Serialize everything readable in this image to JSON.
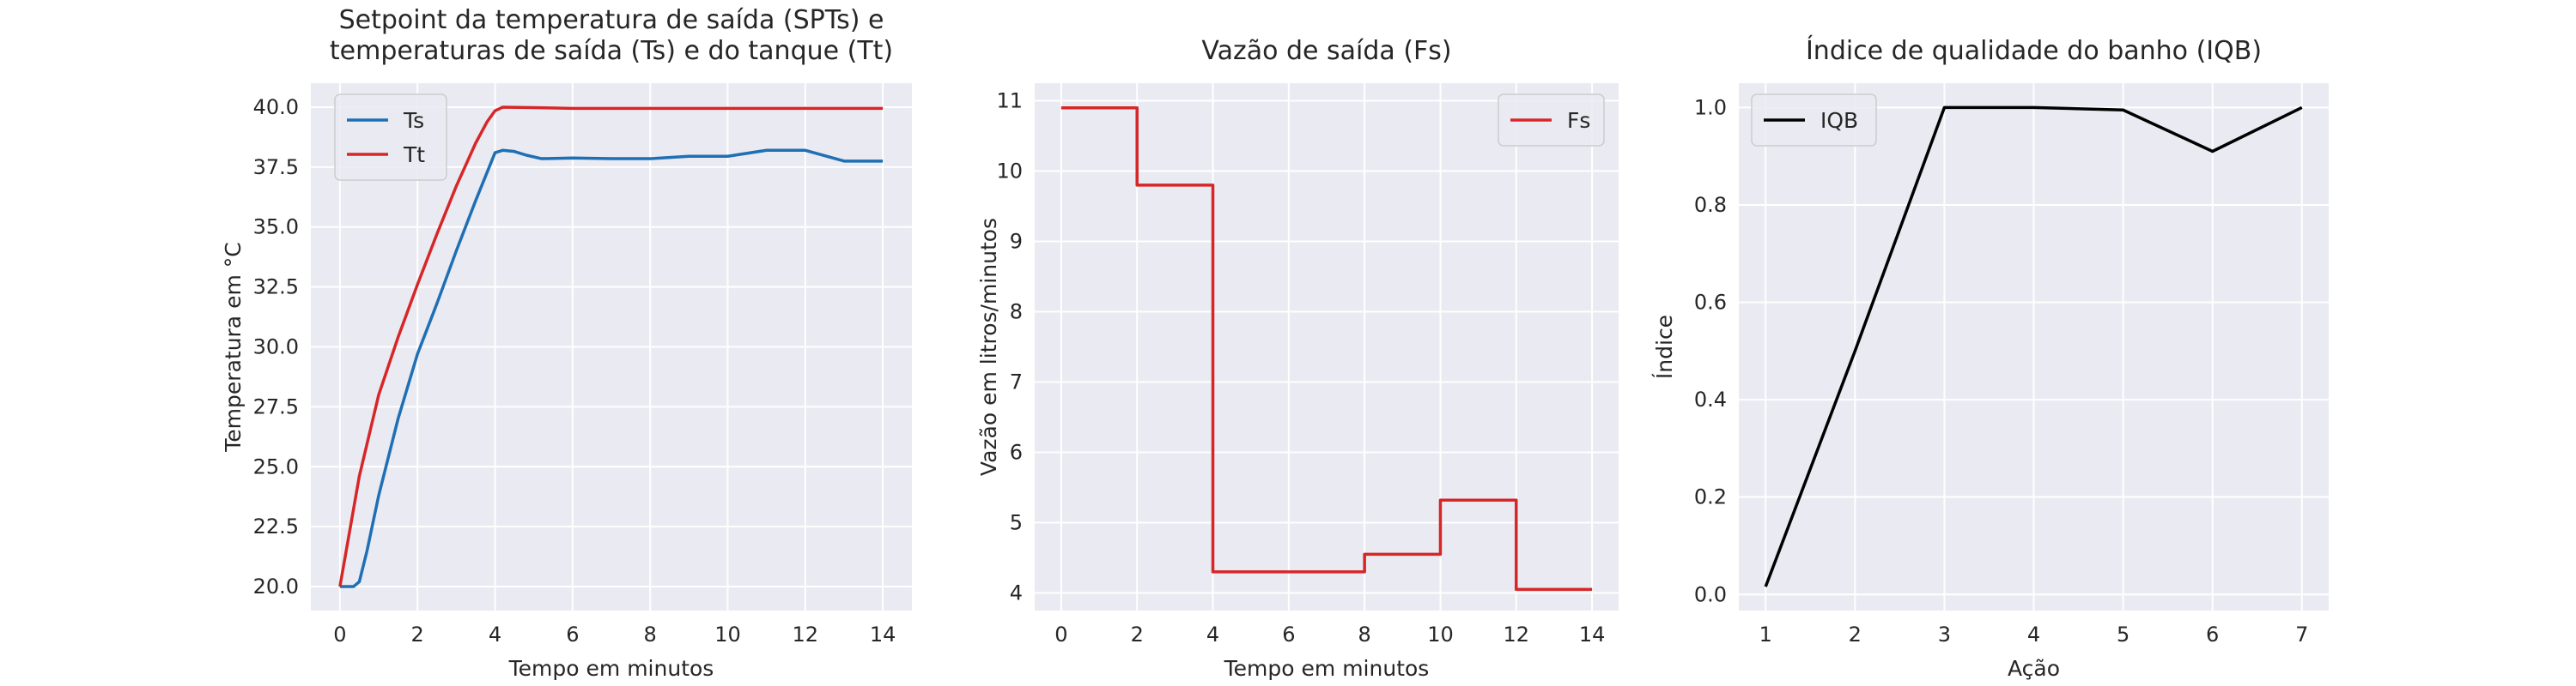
{
  "chart_data": [
    {
      "type": "line",
      "title_lines": [
        "Setpoint da temperatura de saída (SPTs) e",
        "temperaturas de saída (Ts) e do tanque (Tt)"
      ],
      "xlabel": "Tempo em minutos",
      "ylabel": "Temperatura em °C",
      "xlim": [
        -0.75,
        14.75
      ],
      "ylim": [
        19.0,
        41.0
      ],
      "xticks": [
        0,
        2,
        4,
        6,
        8,
        10,
        12,
        14
      ],
      "yticks": [
        20.0,
        22.5,
        25.0,
        27.5,
        30.0,
        32.5,
        35.0,
        37.5,
        40.0
      ],
      "ytick_labels": [
        "20.0",
        "22.5",
        "25.0",
        "27.5",
        "30.0",
        "32.5",
        "35.0",
        "37.5",
        "40.0"
      ],
      "grid": true,
      "legend": "top-left",
      "series": [
        {
          "name": "Ts",
          "color": "#1f6fb4",
          "x": [
            0,
            0.35,
            0.5,
            0.7,
            1.0,
            1.5,
            2.0,
            2.5,
            3.0,
            3.5,
            4.0,
            4.2,
            4.5,
            4.8,
            5.2,
            6.0,
            7.0,
            8.0,
            9.0,
            10.0,
            11.0,
            12.0,
            13.0,
            14.0
          ],
          "y": [
            20.0,
            20.0,
            20.2,
            21.5,
            23.8,
            27.0,
            29.7,
            31.8,
            34.0,
            36.1,
            38.1,
            38.2,
            38.15,
            38.0,
            37.85,
            37.88,
            37.85,
            37.85,
            37.95,
            37.95,
            38.2,
            38.2,
            37.75,
            37.75
          ]
        },
        {
          "name": "Tt",
          "color": "#d62728",
          "x": [
            0,
            0.5,
            1.0,
            1.5,
            2.0,
            2.5,
            3.0,
            3.5,
            3.8,
            4.0,
            4.2,
            5.0,
            6.0,
            8.0,
            10.0,
            12.0,
            14.0
          ],
          "y": [
            20.0,
            24.6,
            28.0,
            30.4,
            32.6,
            34.7,
            36.7,
            38.5,
            39.4,
            39.85,
            40.0,
            39.98,
            39.95,
            39.95,
            39.95,
            39.95,
            39.95
          ]
        }
      ]
    },
    {
      "type": "line",
      "title_lines": [
        "Vazão de saída (Fs)"
      ],
      "xlabel": "Tempo em minutos",
      "ylabel": "Vazão em litros/minutos",
      "xlim": [
        -0.7,
        14.7
      ],
      "ylim": [
        3.75,
        11.25
      ],
      "xticks": [
        0,
        2,
        4,
        6,
        8,
        10,
        12,
        14
      ],
      "yticks": [
        4,
        5,
        6,
        7,
        8,
        9,
        10,
        11
      ],
      "ytick_labels": [
        "4",
        "5",
        "6",
        "7",
        "8",
        "9",
        "10",
        "11"
      ],
      "grid": true,
      "legend": "top-right",
      "series": [
        {
          "name": "Fs",
          "color": "#d62728",
          "step": true,
          "x": [
            0,
            2,
            2,
            4,
            4,
            8,
            8,
            10,
            10,
            12,
            12,
            14
          ],
          "y": [
            10.9,
            10.9,
            9.8,
            9.8,
            4.3,
            4.3,
            4.55,
            4.55,
            5.32,
            5.32,
            4.05,
            4.05
          ]
        }
      ]
    },
    {
      "type": "line",
      "title_lines": [
        "Índice de qualidade do banho (IQB)"
      ],
      "xlabel": "Ação",
      "ylabel": "Índice",
      "xlim": [
        0.7,
        7.3
      ],
      "ylim": [
        -0.033,
        1.05
      ],
      "xticks": [
        1,
        2,
        3,
        4,
        5,
        6,
        7
      ],
      "yticks": [
        0.0,
        0.2,
        0.4,
        0.6,
        0.8,
        1.0
      ],
      "ytick_labels": [
        "0.0",
        "0.2",
        "0.4",
        "0.6",
        "0.8",
        "1.0"
      ],
      "grid": true,
      "legend": "top-left",
      "series": [
        {
          "name": "IQB",
          "color": "#000000",
          "x": [
            1,
            2,
            3,
            4,
            5,
            6,
            7
          ],
          "y": [
            0.016,
            0.5,
            1.0,
            1.0,
            0.995,
            0.91,
            1.0
          ]
        }
      ]
    }
  ],
  "style": {
    "plot_background": "#eaeaf2",
    "grid_color": "#ffffff"
  }
}
